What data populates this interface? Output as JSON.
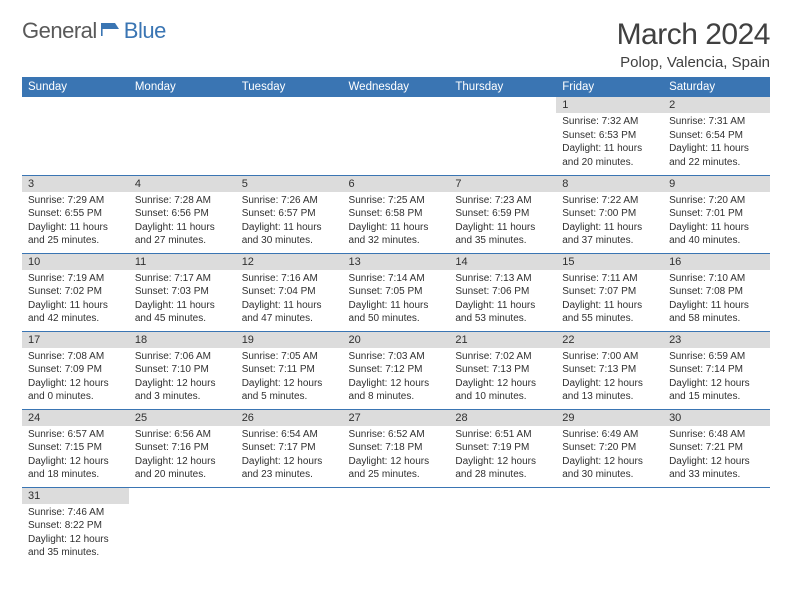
{
  "logo": {
    "part1": "General",
    "part2": "Blue"
  },
  "title": "March 2024",
  "subtitle": "Polop, Valencia, Spain",
  "headers": [
    "Sunday",
    "Monday",
    "Tuesday",
    "Wednesday",
    "Thursday",
    "Friday",
    "Saturday"
  ],
  "colors": {
    "header_bg": "#3a75b3",
    "header_fg": "#ffffff",
    "daynum_bg": "#dcdcdc",
    "rule": "#3a75b3",
    "logo_gray": "#595959",
    "logo_blue": "#3a75b3"
  },
  "rows": [
    [
      null,
      null,
      null,
      null,
      null,
      {
        "n": "1",
        "sr": "7:32 AM",
        "ss": "6:53 PM",
        "dl": "11 hours and 20 minutes."
      },
      {
        "n": "2",
        "sr": "7:31 AM",
        "ss": "6:54 PM",
        "dl": "11 hours and 22 minutes."
      }
    ],
    [
      {
        "n": "3",
        "sr": "7:29 AM",
        "ss": "6:55 PM",
        "dl": "11 hours and 25 minutes."
      },
      {
        "n": "4",
        "sr": "7:28 AM",
        "ss": "6:56 PM",
        "dl": "11 hours and 27 minutes."
      },
      {
        "n": "5",
        "sr": "7:26 AM",
        "ss": "6:57 PM",
        "dl": "11 hours and 30 minutes."
      },
      {
        "n": "6",
        "sr": "7:25 AM",
        "ss": "6:58 PM",
        "dl": "11 hours and 32 minutes."
      },
      {
        "n": "7",
        "sr": "7:23 AM",
        "ss": "6:59 PM",
        "dl": "11 hours and 35 minutes."
      },
      {
        "n": "8",
        "sr": "7:22 AM",
        "ss": "7:00 PM",
        "dl": "11 hours and 37 minutes."
      },
      {
        "n": "9",
        "sr": "7:20 AM",
        "ss": "7:01 PM",
        "dl": "11 hours and 40 minutes."
      }
    ],
    [
      {
        "n": "10",
        "sr": "7:19 AM",
        "ss": "7:02 PM",
        "dl": "11 hours and 42 minutes."
      },
      {
        "n": "11",
        "sr": "7:17 AM",
        "ss": "7:03 PM",
        "dl": "11 hours and 45 minutes."
      },
      {
        "n": "12",
        "sr": "7:16 AM",
        "ss": "7:04 PM",
        "dl": "11 hours and 47 minutes."
      },
      {
        "n": "13",
        "sr": "7:14 AM",
        "ss": "7:05 PM",
        "dl": "11 hours and 50 minutes."
      },
      {
        "n": "14",
        "sr": "7:13 AM",
        "ss": "7:06 PM",
        "dl": "11 hours and 53 minutes."
      },
      {
        "n": "15",
        "sr": "7:11 AM",
        "ss": "7:07 PM",
        "dl": "11 hours and 55 minutes."
      },
      {
        "n": "16",
        "sr": "7:10 AM",
        "ss": "7:08 PM",
        "dl": "11 hours and 58 minutes."
      }
    ],
    [
      {
        "n": "17",
        "sr": "7:08 AM",
        "ss": "7:09 PM",
        "dl": "12 hours and 0 minutes."
      },
      {
        "n": "18",
        "sr": "7:06 AM",
        "ss": "7:10 PM",
        "dl": "12 hours and 3 minutes."
      },
      {
        "n": "19",
        "sr": "7:05 AM",
        "ss": "7:11 PM",
        "dl": "12 hours and 5 minutes."
      },
      {
        "n": "20",
        "sr": "7:03 AM",
        "ss": "7:12 PM",
        "dl": "12 hours and 8 minutes."
      },
      {
        "n": "21",
        "sr": "7:02 AM",
        "ss": "7:13 PM",
        "dl": "12 hours and 10 minutes."
      },
      {
        "n": "22",
        "sr": "7:00 AM",
        "ss": "7:13 PM",
        "dl": "12 hours and 13 minutes."
      },
      {
        "n": "23",
        "sr": "6:59 AM",
        "ss": "7:14 PM",
        "dl": "12 hours and 15 minutes."
      }
    ],
    [
      {
        "n": "24",
        "sr": "6:57 AM",
        "ss": "7:15 PM",
        "dl": "12 hours and 18 minutes."
      },
      {
        "n": "25",
        "sr": "6:56 AM",
        "ss": "7:16 PM",
        "dl": "12 hours and 20 minutes."
      },
      {
        "n": "26",
        "sr": "6:54 AM",
        "ss": "7:17 PM",
        "dl": "12 hours and 23 minutes."
      },
      {
        "n": "27",
        "sr": "6:52 AM",
        "ss": "7:18 PM",
        "dl": "12 hours and 25 minutes."
      },
      {
        "n": "28",
        "sr": "6:51 AM",
        "ss": "7:19 PM",
        "dl": "12 hours and 28 minutes."
      },
      {
        "n": "29",
        "sr": "6:49 AM",
        "ss": "7:20 PM",
        "dl": "12 hours and 30 minutes."
      },
      {
        "n": "30",
        "sr": "6:48 AM",
        "ss": "7:21 PM",
        "dl": "12 hours and 33 minutes."
      }
    ],
    [
      {
        "n": "31",
        "sr": "7:46 AM",
        "ss": "8:22 PM",
        "dl": "12 hours and 35 minutes."
      },
      null,
      null,
      null,
      null,
      null,
      null
    ]
  ],
  "labels": {
    "sunrise": "Sunrise:",
    "sunset": "Sunset:",
    "daylight": "Daylight:"
  }
}
